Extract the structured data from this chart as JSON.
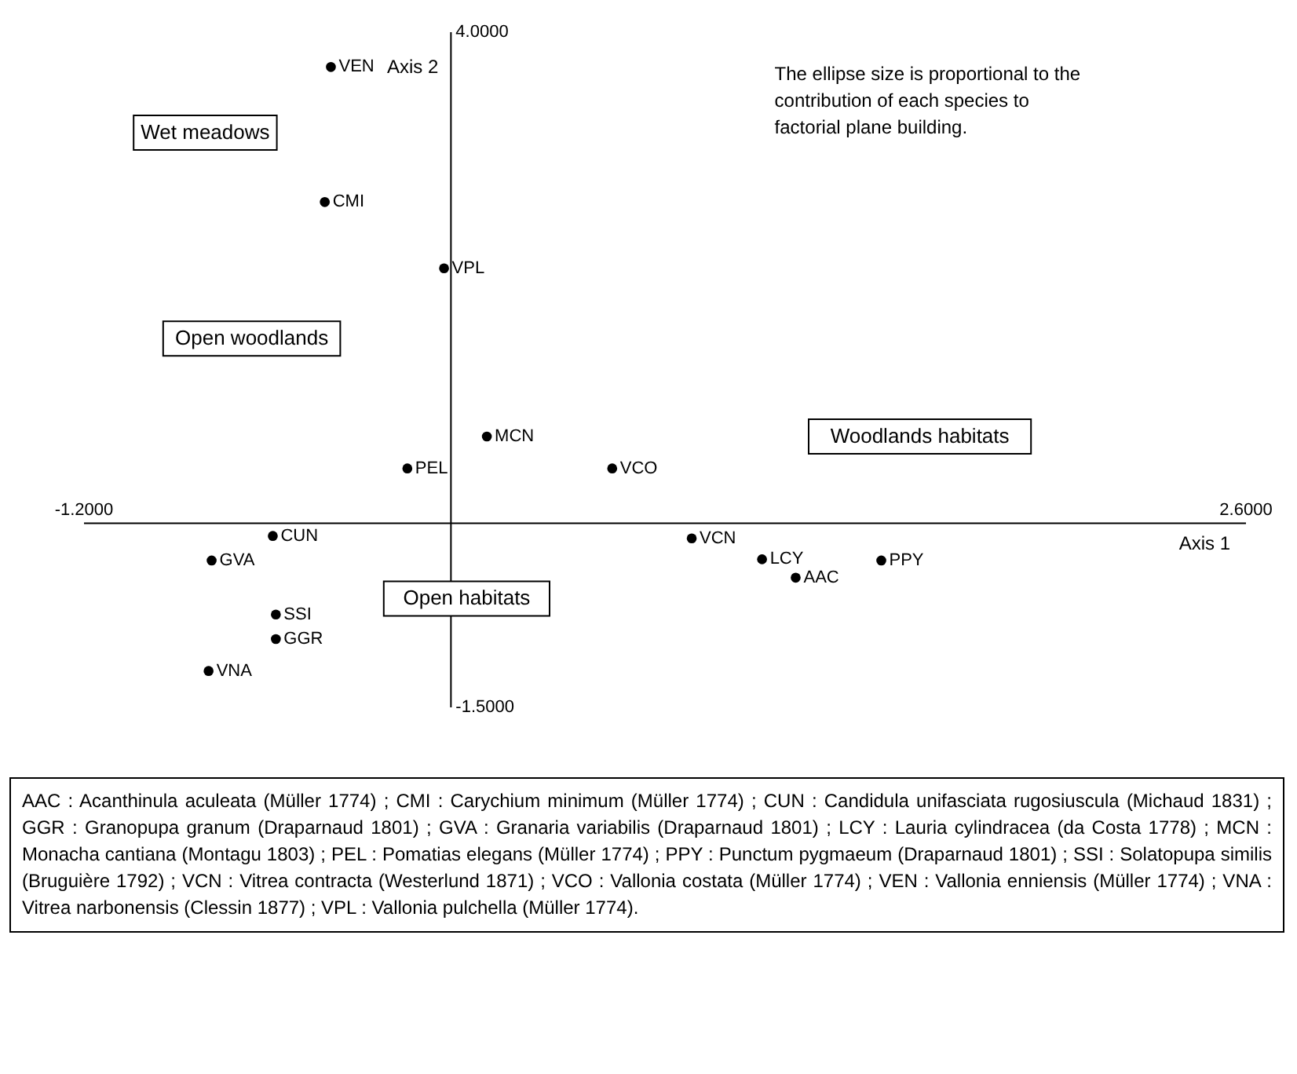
{
  "chart_data": {
    "type": "scatter",
    "xlabel": "Axis 1",
    "ylabel": "Axis 2",
    "xlim": [
      -1.2,
      2.6
    ],
    "ylim": [
      -1.5,
      4.0
    ],
    "xticks": [
      {
        "value": -1.2,
        "label": "-1.2000"
      },
      {
        "value": 2.6,
        "label": "2.6000"
      }
    ],
    "yticks": [
      {
        "value": -1.5,
        "label": "-1.5000"
      },
      {
        "value": 4.0,
        "label": "4.0000"
      }
    ],
    "marker": "circle",
    "grid": false,
    "legend": false,
    "series": [
      {
        "name": "VEN",
        "color": "#000000",
        "x": [
          -0.39
        ],
        "values": [
          3.71
        ]
      },
      {
        "name": "CMI",
        "color": "#000000",
        "x": [
          -0.41
        ],
        "values": [
          2.61
        ]
      },
      {
        "name": "VPL",
        "color": "#000000",
        "x": [
          -0.02
        ],
        "values": [
          2.07
        ]
      },
      {
        "name": "PEL",
        "color": "#000000",
        "x": [
          -0.14
        ],
        "values": [
          0.44
        ]
      },
      {
        "name": "MCN",
        "color": "#000000",
        "x": [
          0.12
        ],
        "values": [
          0.7
        ]
      },
      {
        "name": "VCO",
        "color": "#000000",
        "x": [
          0.53
        ],
        "values": [
          0.44
        ]
      },
      {
        "name": "VCN",
        "color": "#000000",
        "x": [
          0.79
        ],
        "values": [
          -0.13
        ]
      },
      {
        "name": "LCY",
        "color": "#000000",
        "x": [
          1.02
        ],
        "values": [
          -0.3
        ]
      },
      {
        "name": "AAC",
        "color": "#000000",
        "x": [
          1.13
        ],
        "values": [
          -0.45
        ]
      },
      {
        "name": "PPY",
        "color": "#000000",
        "x": [
          1.41
        ],
        "values": [
          -0.31
        ]
      },
      {
        "name": "GVA",
        "color": "#000000",
        "x": [
          -0.78
        ],
        "values": [
          -0.31
        ]
      },
      {
        "name": "CUN",
        "color": "#000000",
        "x": [
          -0.58
        ],
        "values": [
          -0.11
        ]
      },
      {
        "name": "SSI",
        "color": "#000000",
        "x": [
          -0.57
        ],
        "values": [
          -0.75
        ]
      },
      {
        "name": "GGR",
        "color": "#000000",
        "x": [
          -0.57
        ],
        "values": [
          -0.95
        ]
      },
      {
        "name": "VNA",
        "color": "#000000",
        "x": [
          -0.79
        ],
        "values": [
          -1.21
        ]
      }
    ],
    "annotations": [
      "Wet meadows",
      "Open woodlands",
      "Woodlands habitats",
      "Open habitats",
      "The ellipse size is proportional to the contribution of each species to factorial plane building.",
      "AAC : Acanthinula aculeata (Müller 1774) ; CMI : Carychium minimum (Müller 1774) ; CUN : Candidula unifasciata rugosiuscula (Michaud 1831) ; GGR : Granopupa granum (Draparnaud 1801) ; GVA : Granaria variabilis (Draparnaud 1801) ; LCY : Lauria cylindracea (da Costa 1778) ; MCN : Monacha cantiana (Montagu 1803) ; PEL : Pomatias elegans (Müller 1774) ; PPY : Punctum pygmaeum (Draparnaud 1801) ; SSI : Solatopupa similis (Bruguière 1792) ; VCN : Vitrea contracta (Westerlund 1871) ; VCO : Vallonia costata (Müller 1774) ; VEN : Vallonia enniensis (Müller 1774) ; VNA : Vitrea narbonensis (Clessin 1877) ; VPL : Vallonia pulchella (Müller 1774)."
    ]
  }
}
